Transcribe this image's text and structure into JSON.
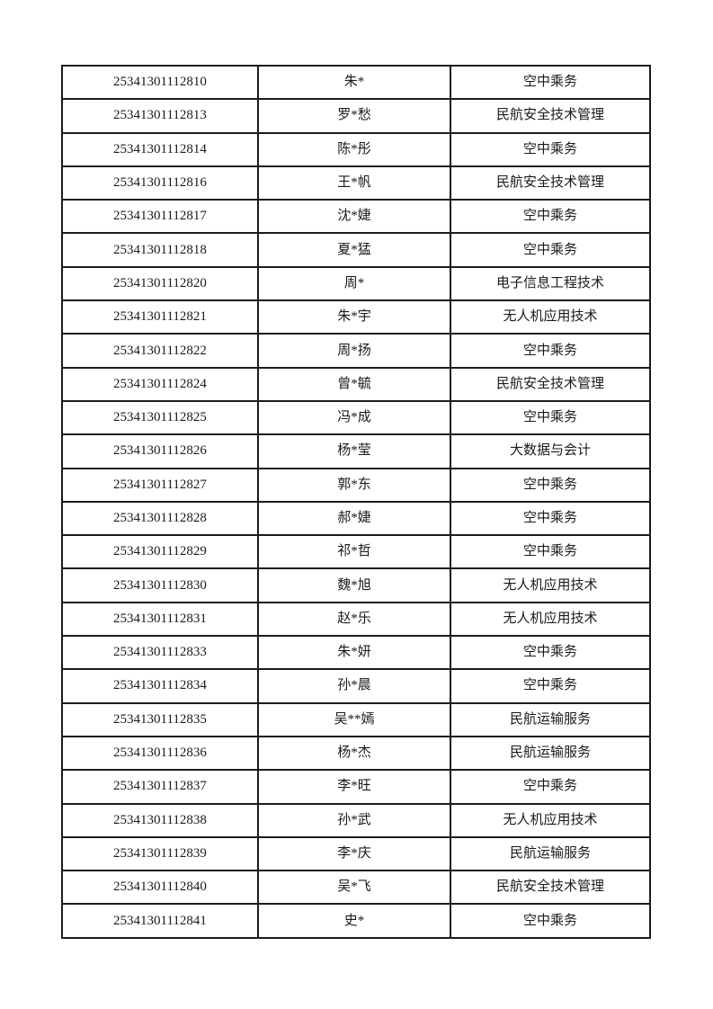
{
  "page": {
    "background_color": "#ffffff",
    "text_color": "#1a1a1a",
    "table_border_color": "#1c1c1c"
  },
  "table": {
    "rows": [
      {
        "id": "25341301112810",
        "name": "朱*",
        "major": "空中乘务"
      },
      {
        "id": "25341301112813",
        "name": "罗*愁",
        "major": "民航安全技术管理"
      },
      {
        "id": "25341301112814",
        "name": "陈*彤",
        "major": "空中乘务"
      },
      {
        "id": "25341301112816",
        "name": "王*帆",
        "major": "民航安全技术管理"
      },
      {
        "id": "25341301112817",
        "name": "沈*婕",
        "major": "空中乘务"
      },
      {
        "id": "25341301112818",
        "name": "夏*猛",
        "major": "空中乘务"
      },
      {
        "id": "25341301112820",
        "name": "周*",
        "major": "电子信息工程技术"
      },
      {
        "id": "25341301112821",
        "name": "朱*宇",
        "major": "无人机应用技术"
      },
      {
        "id": "25341301112822",
        "name": "周*扬",
        "major": "空中乘务"
      },
      {
        "id": "25341301112824",
        "name": "曾*毓",
        "major": "民航安全技术管理"
      },
      {
        "id": "25341301112825",
        "name": "冯*成",
        "major": "空中乘务"
      },
      {
        "id": "25341301112826",
        "name": "杨*莹",
        "major": "大数据与会计"
      },
      {
        "id": "25341301112827",
        "name": "郭*东",
        "major": "空中乘务"
      },
      {
        "id": "25341301112828",
        "name": "郝*婕",
        "major": "空中乘务"
      },
      {
        "id": "25341301112829",
        "name": "祁*哲",
        "major": "空中乘务"
      },
      {
        "id": "25341301112830",
        "name": "魏*旭",
        "major": "无人机应用技术"
      },
      {
        "id": "25341301112831",
        "name": "赵*乐",
        "major": "无人机应用技术"
      },
      {
        "id": "25341301112833",
        "name": "朱*妍",
        "major": "空中乘务"
      },
      {
        "id": "25341301112834",
        "name": "孙*晨",
        "major": "空中乘务"
      },
      {
        "id": "25341301112835",
        "name": "吴**嫣",
        "major": "民航运输服务"
      },
      {
        "id": "25341301112836",
        "name": "杨*杰",
        "major": "民航运输服务"
      },
      {
        "id": "25341301112837",
        "name": "李*旺",
        "major": "空中乘务"
      },
      {
        "id": "25341301112838",
        "name": "孙*武",
        "major": "无人机应用技术"
      },
      {
        "id": "25341301112839",
        "name": "李*庆",
        "major": "民航运输服务"
      },
      {
        "id": "25341301112840",
        "name": "吴*飞",
        "major": "民航安全技术管理"
      },
      {
        "id": "25341301112841",
        "name": "史*",
        "major": "空中乘务"
      }
    ]
  }
}
